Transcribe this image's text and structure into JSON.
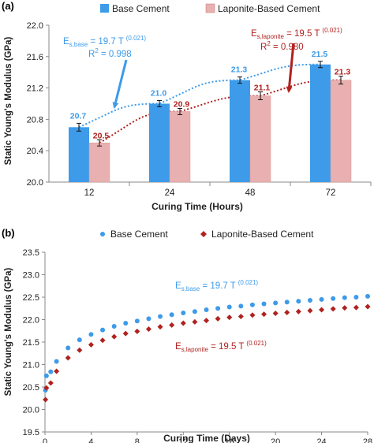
{
  "chart_data": [
    {
      "type": "bar",
      "panel_label": "(a)",
      "categories": [
        "12",
        "24",
        "48",
        "72"
      ],
      "series": [
        {
          "name": "Base Cement",
          "values": [
            20.7,
            21.0,
            21.3,
            21.5
          ],
          "labels": [
            "20.7",
            "21.0",
            "21.3",
            "21.5"
          ],
          "error": [
            0.05,
            0.04,
            0.04,
            0.04
          ],
          "color": "#3d9be9"
        },
        {
          "name": "Laponite-Based Cement",
          "values": [
            20.5,
            20.9,
            21.1,
            21.3
          ],
          "labels": [
            "20.5",
            "20.9",
            "21.1",
            "21.3"
          ],
          "error": [
            0.04,
            0.04,
            0.05,
            0.05
          ],
          "color": "#e8b0b0",
          "label_color": "#b0221e"
        }
      ],
      "xlabel": "Curing Time (Hours)",
      "ylabel": "Static Young's Modulus (GPa)",
      "ylim": [
        20.0,
        22.0
      ],
      "yticks": [
        "20.0",
        "20.4",
        "20.8",
        "21.2",
        "21.6",
        "22.0"
      ],
      "legend_position": "top",
      "annotations": {
        "base": {
          "eq": "E",
          "sub": "s,base",
          "eq_rest": " = 19.7 T ",
          "exp": "(0.021)",
          "r2_main": "R",
          "r2_sup": "2",
          "r2_rest": " = 0.998",
          "color": "#3d9be9"
        },
        "laponite": {
          "eq": "E",
          "sub": "s,laponite",
          "eq_rest": " = 19.5 T ",
          "exp": "(0.021)",
          "r2_main": "R",
          "r2_sup": "2",
          "r2_rest": " = 0.980",
          "color": "#b0221e"
        }
      }
    },
    {
      "type": "scatter",
      "panel_label": "(b)",
      "series": [
        {
          "name": "Base Cement",
          "marker": "circle",
          "color": "#3d9be9",
          "x": [
            0.042,
            0.125,
            0.5,
            1,
            2,
            3,
            4,
            5,
            6,
            7,
            8,
            9,
            10,
            11,
            12,
            13,
            14,
            15,
            16,
            17,
            18,
            19,
            20,
            21,
            22,
            23,
            24,
            25,
            26,
            27,
            28
          ],
          "y": [
            20.43,
            20.75,
            20.84,
            21.07,
            21.37,
            21.55,
            21.67,
            21.77,
            21.85,
            21.92,
            21.97,
            22.02,
            22.07,
            22.11,
            22.15,
            22.18,
            22.22,
            22.25,
            22.28,
            22.3,
            22.33,
            22.35,
            22.37,
            22.39,
            22.41,
            22.43,
            22.45,
            22.47,
            22.49,
            22.5,
            22.52
          ]
        },
        {
          "name": "Laponite-Based Cement",
          "marker": "diamond",
          "color": "#b0221e",
          "x": [
            0.042,
            0.125,
            0.5,
            1,
            2,
            3,
            4,
            5,
            6,
            7,
            8,
            9,
            10,
            11,
            12,
            13,
            14,
            15,
            16,
            17,
            18,
            19,
            20,
            21,
            22,
            23,
            24,
            25,
            26,
            27,
            28
          ],
          "y": [
            20.22,
            20.48,
            20.59,
            20.85,
            21.15,
            21.32,
            21.44,
            21.54,
            21.62,
            21.69,
            21.74,
            21.79,
            21.84,
            21.88,
            21.92,
            21.95,
            21.98,
            22.02,
            22.05,
            22.07,
            22.1,
            22.12,
            22.14,
            22.16,
            22.18,
            22.2,
            22.22,
            22.24,
            22.26,
            22.27,
            22.29
          ]
        }
      ],
      "xlabel": "Curing Time (Days)",
      "ylabel": "Static Young's Modulus (GPa)",
      "xlim": [
        0,
        28
      ],
      "xticks": [
        "0",
        "4",
        "8",
        "12",
        "16",
        "20",
        "24",
        "28"
      ],
      "ylim": [
        19.5,
        23.5
      ],
      "yticks": [
        "19.5",
        "20.0",
        "20.5",
        "21.0",
        "21.5",
        "22.0",
        "22.5",
        "23.0",
        "23.5"
      ],
      "legend_position": "top",
      "annotations": {
        "base": {
          "eq": "E",
          "sub": "s,base",
          "eq_rest": " = 19.7 T ",
          "exp": "(0.021)",
          "color": "#3d9be9"
        },
        "laponite": {
          "eq": "E",
          "sub": "s,laponite",
          "eq_rest": " = 19.5 T ",
          "exp": "(0.021)",
          "color": "#b0221e"
        }
      }
    }
  ]
}
